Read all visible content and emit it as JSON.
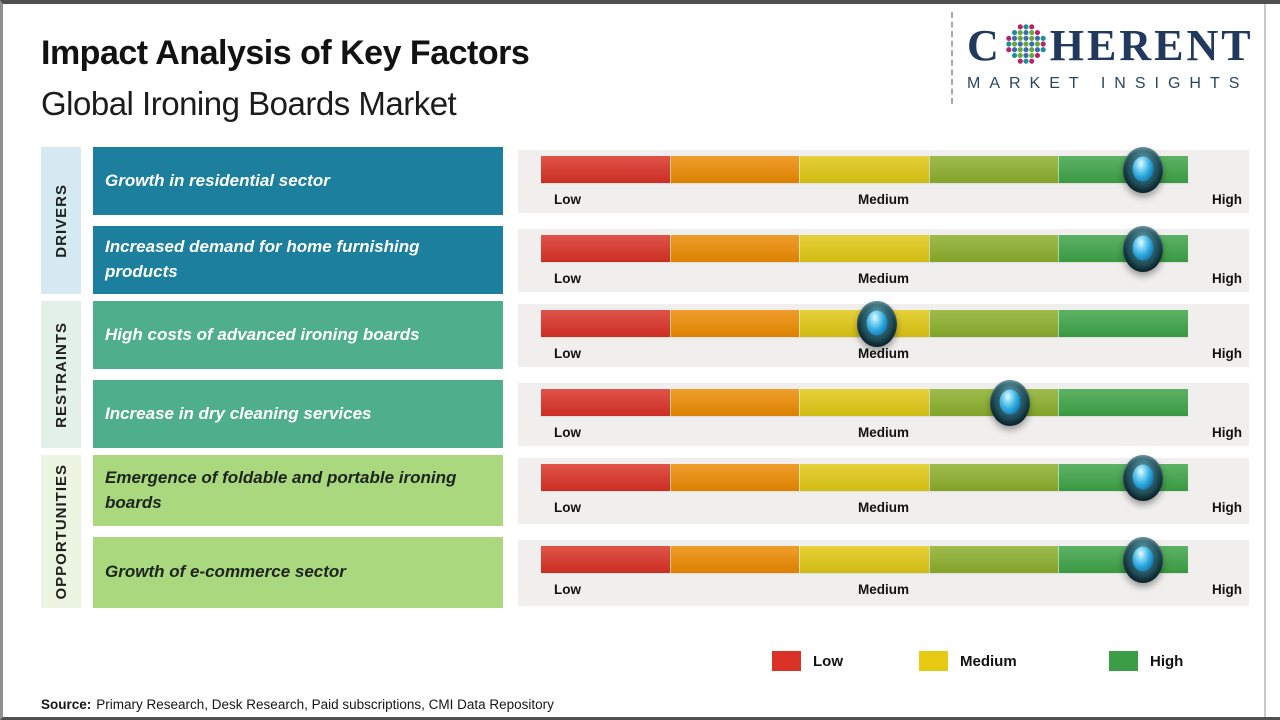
{
  "header": {
    "title": "Impact Analysis of Key Factors",
    "subtitle": "Global Ironing Boards Market",
    "logo": {
      "part1": "C",
      "part2": "HERENT",
      "tagline": "MARKET INSIGHTS",
      "icon": "dotted-globe-icon",
      "brand_color": "#20395c"
    }
  },
  "scale": {
    "labels": {
      "low": "Low",
      "medium": "Medium",
      "high": "High"
    },
    "segment_colors": [
      "#da3226",
      "#ec8b02",
      "#e0c814",
      "#8caf2d",
      "#3ea447"
    ],
    "panel_bg": "#f0efed",
    "marker_icon": "glossy-sphere-marker-icon"
  },
  "groups": [
    {
      "label": "DRIVERS",
      "rail_bg": "#d5e9f3",
      "box_bg": "#1c7f9e",
      "box_text_color": "#ffffff",
      "factors": [
        {
          "text": "Growth in residential sector",
          "impact_pct": 93
        },
        {
          "text": "Increased demand for home furnishing products",
          "impact_pct": 93
        }
      ]
    },
    {
      "label": "RESTRAINTS",
      "rail_bg": "#e3f0ea",
      "box_bg": "#4fae8c",
      "box_text_color": "#ffffff",
      "factors": [
        {
          "text": "High costs of advanced ironing boards",
          "impact_pct": 52
        },
        {
          "text": "Increase in dry cleaning services",
          "impact_pct": 72.5
        }
      ]
    },
    {
      "label": "OPPORTUNITIES",
      "rail_bg": "#ecf5e2",
      "box_bg": "#a9d87e",
      "box_text_color": "#1d241c",
      "factors": [
        {
          "text": "Emergence of foldable and portable ironing boards",
          "impact_pct": 93
        },
        {
          "text": "Growth of e-commerce sector",
          "impact_pct": 93
        }
      ]
    }
  ],
  "legend": {
    "items": [
      {
        "label": "Low",
        "color": "#da3226"
      },
      {
        "label": "Medium",
        "color": "#e6cb12"
      },
      {
        "label": "High",
        "color": "#3b9e47"
      }
    ]
  },
  "footer": {
    "source_label": "Source:",
    "source_text": "Primary Research, Desk Research, Paid subscriptions, CMI Data Repository"
  },
  "chart_data": {
    "type": "table",
    "title": "Impact Analysis of Key Factors",
    "subtitle": "Global Ironing Boards Market",
    "scale": {
      "min_label": "Low",
      "mid_label": "Medium",
      "max_label": "High",
      "range_pct": [
        0,
        100
      ]
    },
    "rows": [
      {
        "group": "Drivers",
        "factor": "Growth in residential sector",
        "impact": "High",
        "impact_pct": 93
      },
      {
        "group": "Drivers",
        "factor": "Increased demand for home furnishing products",
        "impact": "High",
        "impact_pct": 93
      },
      {
        "group": "Restraints",
        "factor": "High costs of advanced ironing boards",
        "impact": "Medium",
        "impact_pct": 52
      },
      {
        "group": "Restraints",
        "factor": "Increase in dry cleaning services",
        "impact": "Medium-High",
        "impact_pct": 72.5
      },
      {
        "group": "Opportunities",
        "factor": "Emergence of foldable and portable ironing boards",
        "impact": "High",
        "impact_pct": 93
      },
      {
        "group": "Opportunities",
        "factor": "Growth of e-commerce sector",
        "impact": "High",
        "impact_pct": 93
      }
    ],
    "legend": [
      {
        "label": "Low",
        "color": "#da3226"
      },
      {
        "label": "Medium",
        "color": "#e6cb12"
      },
      {
        "label": "High",
        "color": "#3b9e47"
      }
    ],
    "legend_position": "bottom-right",
    "grid": false
  }
}
